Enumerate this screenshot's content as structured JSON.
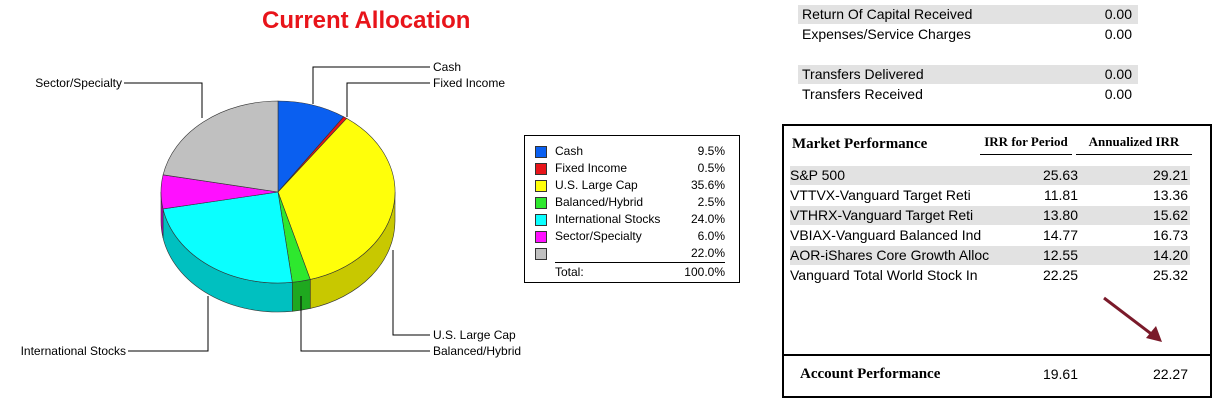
{
  "chart_data": {
    "type": "pie",
    "title": "Current Allocation",
    "slices": [
      {
        "label": "Cash",
        "value": 9.5,
        "legend_pct": "9.5%",
        "color": "#0a5ff0",
        "side": "#0a3fa0"
      },
      {
        "label": "Fixed Income",
        "value": 0.5,
        "legend_pct": "0.5%",
        "color": "#e8141a",
        "side": "#a00d12"
      },
      {
        "label": "U.S. Large Cap",
        "value": 35.6,
        "legend_pct": "35.6%",
        "color": "#ffff0a",
        "side": "#c8c800"
      },
      {
        "label": "Balanced/Hybrid",
        "value": 2.5,
        "legend_pct": "2.5%",
        "color": "#2ee82e",
        "side": "#1fa81f"
      },
      {
        "label": "International Stocks",
        "value": 24.0,
        "legend_pct": "24.0%",
        "color": "#0affff",
        "side": "#00c0c0"
      },
      {
        "label": "Sector/Specialty",
        "value": 6.0,
        "legend_pct": "6.0%",
        "color": "#ff10ff",
        "side": "#b800b8"
      },
      {
        "label": "",
        "value": 22.0,
        "legend_pct": "22.0%",
        "color": "#c0c0c0",
        "side": "#8a8a8a"
      }
    ],
    "legend_placement": "right",
    "total_label": "Total:",
    "total_value": "100.0%"
  },
  "transactions": [
    {
      "label": "Return Of Capital Received",
      "value": "0.00",
      "shaded": true
    },
    {
      "label": "Expenses/Service Charges",
      "value": "0.00",
      "shaded": false
    },
    {
      "label": "Transfers Delivered",
      "value": "0.00",
      "shaded": true
    },
    {
      "label": "Transfers Received",
      "value": "0.00",
      "shaded": false
    }
  ],
  "market_performance": {
    "title": "Market Performance",
    "col1": "IRR for Period",
    "col2": "Annualized IRR",
    "rows": [
      {
        "name": "S&P 500",
        "irr": "25.63",
        "annualized": "29.21",
        "shaded": true
      },
      {
        "name": "VTTVX-Vanguard Target Reti",
        "irr": "11.81",
        "annualized": "13.36",
        "shaded": false
      },
      {
        "name": "VTHRX-Vanguard Target Reti",
        "irr": "13.80",
        "annualized": "15.62",
        "shaded": true
      },
      {
        "name": "VBIAX-Vanguard Balanced Ind",
        "irr": "14.77",
        "annualized": "16.73",
        "shaded": false
      },
      {
        "name": "AOR-iShares Core Growth Alloc",
        "irr": "12.55",
        "annualized": "14.20",
        "shaded": true
      },
      {
        "name": "Vanguard Total World Stock In",
        "irr": "22.25",
        "annualized": "25.32",
        "shaded": false
      }
    ],
    "account_label": "Account Performance",
    "account_irr": "19.61",
    "account_annualized": "22.27",
    "arrow_color": "#7a1a2a"
  }
}
